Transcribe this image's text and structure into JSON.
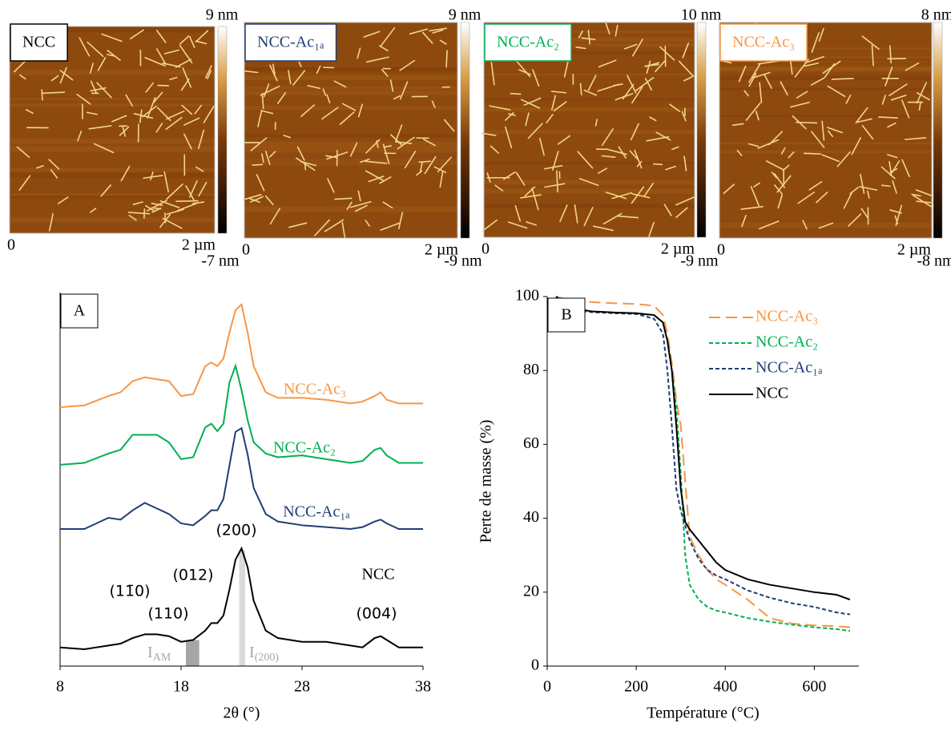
{
  "afm_images": [
    {
      "label": "NCC",
      "label_color": "#000000",
      "scale_max": "9 nm",
      "scale_min": "-7 nm",
      "axis_start": "0",
      "axis_end": "2 µm"
    },
    {
      "label": "NCC-Ac₁ₐ",
      "label_color": "#1f3e74",
      "scale_max": "9 nm",
      "scale_min": "-9 nm",
      "axis_start": "0",
      "axis_end": "2 µm"
    },
    {
      "label": "NCC-Ac₂",
      "label_color": "#00b050",
      "scale_max": "10 nm",
      "scale_min": "-9 nm",
      "axis_start": "0",
      "axis_end": "2 µm"
    },
    {
      "label": "NCC-Ac₃",
      "label_color": "#f79646",
      "scale_max": "8 nm",
      "scale_min": "-8 nm",
      "axis_start": "0",
      "axis_end": "2 µm"
    }
  ],
  "chart_data": [
    {
      "type": "line",
      "panel_label": "A",
      "x_label": "2θ (°)",
      "xlim": [
        8,
        38
      ],
      "xticks": [
        8,
        18,
        28,
        38
      ],
      "ylim": [
        0,
        100
      ],
      "x": [
        8,
        10,
        12,
        13,
        14,
        15,
        16,
        17,
        18,
        19,
        20,
        20.5,
        21,
        21.5,
        22,
        22.5,
        23,
        23.5,
        24,
        25,
        26,
        28,
        30,
        32,
        33,
        34,
        34.5,
        35,
        36,
        38
      ],
      "series": [
        {
          "name": "NCC",
          "color": "#000000",
          "values": [
            5,
            4.5,
            5.5,
            6,
            7.5,
            8.5,
            8.5,
            8,
            6.5,
            7,
            9.5,
            11.5,
            11.5,
            13.5,
            20.5,
            28.5,
            31.5,
            26.5,
            17.5,
            9.5,
            7.5,
            6.5,
            6.5,
            5.5,
            5,
            7.5,
            8,
            7,
            5,
            5
          ]
        },
        {
          "name": "NCC-Ac₁ₐ",
          "color": "#1f3e74",
          "values": [
            36.7,
            36.7,
            39.7,
            39.2,
            41.7,
            43.7,
            42.2,
            40.7,
            38.2,
            37.7,
            40.2,
            41.7,
            41.7,
            44.7,
            53.7,
            62.7,
            63.7,
            56.7,
            47.7,
            40.7,
            38.7,
            37.7,
            37.2,
            36.7,
            37.2,
            38.7,
            39.2,
            38.2,
            36.7,
            36.7
          ]
        },
        {
          "name": "NCC-Ac₂",
          "color": "#00b050",
          "values": [
            53.9,
            54.4,
            56.9,
            57.9,
            61.9,
            61.9,
            61.9,
            59.9,
            55.4,
            55.9,
            63.9,
            64.9,
            62.9,
            64.9,
            75.9,
            80.4,
            73.9,
            65.9,
            59.9,
            56.9,
            55.9,
            56.4,
            55.4,
            54.4,
            54.9,
            57.9,
            58.4,
            56.4,
            54.4,
            54.4
          ]
        },
        {
          "name": "NCC-Ac₃",
          "color": "#f79646",
          "values": [
            69.3,
            69.8,
            72.3,
            73.3,
            76.3,
            77.3,
            76.8,
            76.3,
            72.3,
            72.8,
            80.3,
            81.3,
            80.3,
            82.3,
            89.3,
            95.3,
            96.8,
            89.3,
            80.3,
            73.3,
            71.8,
            71.8,
            71.3,
            70.3,
            70.8,
            72.3,
            73.3,
            71.3,
            70.3,
            70.3
          ]
        }
      ],
      "annotations": [
        "(200)",
        "(012)",
        "(11̄0)",
        "(110)",
        "(004)"
      ],
      "bands": [
        {
          "text": "I",
          "sub": "AM",
          "range": [
            18.4,
            19.5
          ],
          "color": "#a6a6a6"
        },
        {
          "text": "I",
          "sub": "(200)",
          "range": [
            22.8,
            23.3
          ],
          "color": "#d9d9d9"
        }
      ]
    },
    {
      "type": "line",
      "panel_label": "B",
      "x_label": "Température (°C)",
      "y_label": "Perte de masse (%)",
      "xlim": [
        0,
        700
      ],
      "xticks": [
        0,
        200,
        400,
        600
      ],
      "ylim": [
        0,
        100
      ],
      "yticks": [
        0,
        20,
        40,
        60,
        80,
        100
      ],
      "legend": "upper right",
      "x": [
        20,
        50,
        100,
        150,
        200,
        240,
        260,
        270,
        280,
        290,
        300,
        310,
        320,
        340,
        360,
        380,
        400,
        450,
        500,
        550,
        600,
        650,
        680
      ],
      "series": [
        {
          "name": "NCC-Ac₃",
          "color": "#f79646",
          "dash": "long-dash",
          "values": [
            100,
            99,
            98.5,
            98.2,
            98,
            97.5,
            95,
            90,
            82,
            72,
            65,
            50,
            35,
            30,
            26,
            23.5,
            22,
            18,
            13,
            11.5,
            11,
            10.8,
            10.5
          ]
        },
        {
          "name": "NCC-Ac₂",
          "color": "#00b050",
          "dash": "short-dash",
          "values": [
            100,
            96.5,
            95.8,
            95.5,
            95.3,
            95,
            93,
            88,
            80,
            70,
            52,
            30,
            22,
            18,
            16,
            15,
            14.5,
            13,
            12,
            11.2,
            10.5,
            10,
            9.5
          ]
        },
        {
          "name": "NCC-Ac₁ₐ",
          "color": "#1f3e74",
          "dash": "short-dash",
          "values": [
            100,
            96.5,
            95.8,
            95.5,
            95.3,
            94,
            90,
            80,
            65,
            48,
            42,
            38,
            34,
            29,
            26,
            24.5,
            23.5,
            20.5,
            18.5,
            17,
            16,
            14.5,
            14
          ]
        },
        {
          "name": "NCC",
          "color": "#000000",
          "dash": "solid",
          "values": [
            100,
            97,
            96,
            95.7,
            95.5,
            95,
            93,
            88,
            80,
            65,
            48,
            39,
            37,
            34,
            31,
            28,
            26,
            23.5,
            22,
            21,
            20,
            19.3,
            18
          ]
        }
      ]
    }
  ]
}
